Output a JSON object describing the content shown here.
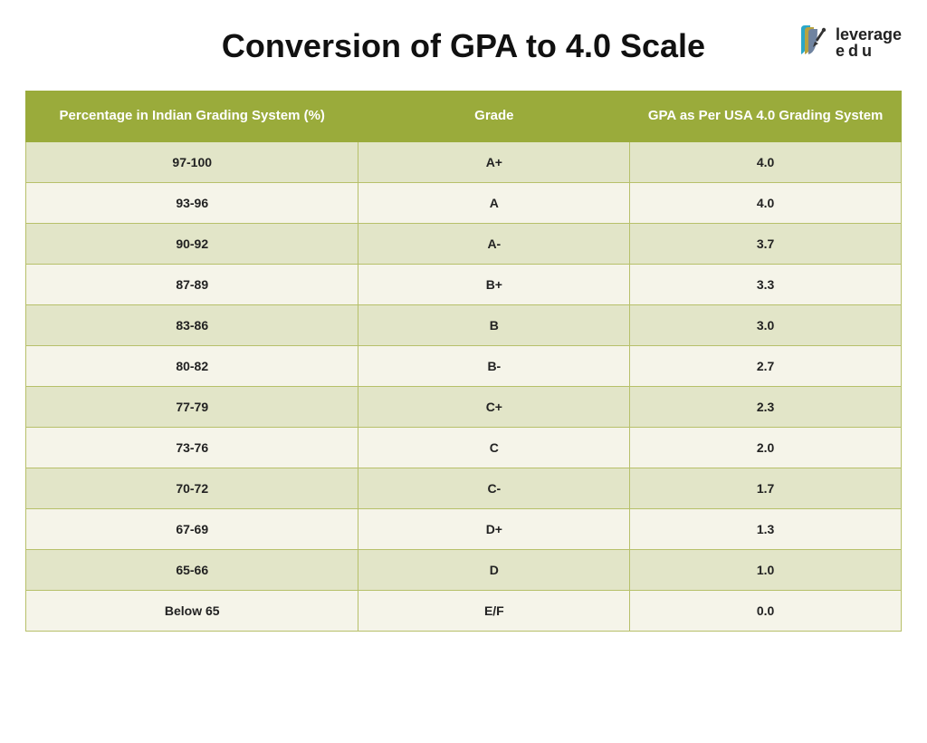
{
  "title": "Conversion of GPA to 4.0 Scale",
  "logo": {
    "line1": "leverage",
    "line2": "edu"
  },
  "table": {
    "columns": [
      "Percentage in Indian Grading System (%)",
      "Grade",
      "GPA as Per USA 4.0 Grading System"
    ],
    "rows": [
      [
        "97-100",
        "A+",
        "4.0"
      ],
      [
        "93-96",
        "A",
        "4.0"
      ],
      [
        "90-92",
        "A-",
        "3.7"
      ],
      [
        "87-89",
        "B+",
        "3.3"
      ],
      [
        "83-86",
        "B",
        "3.0"
      ],
      [
        "80-82",
        "B-",
        "2.7"
      ],
      [
        "77-79",
        "C+",
        "2.3"
      ],
      [
        "73-76",
        "C",
        "2.0"
      ],
      [
        "70-72",
        "C-",
        "1.7"
      ],
      [
        "67-69",
        "D+",
        "1.3"
      ],
      [
        "65-66",
        "D",
        "1.0"
      ],
      [
        "Below 65",
        "E/F",
        "0.0"
      ]
    ],
    "header_bg": "#9aab3b",
    "header_fg": "#ffffff",
    "row_odd_bg": "#e2e5c8",
    "row_even_bg": "#f5f4e9",
    "border_color": "#b7c06a",
    "header_fontsize": 15,
    "cell_fontsize": 14,
    "column_widths": [
      "38%",
      "31%",
      "31%"
    ]
  },
  "page": {
    "bg": "#ffffff",
    "title_fontsize": 36,
    "title_color": "#111111"
  }
}
